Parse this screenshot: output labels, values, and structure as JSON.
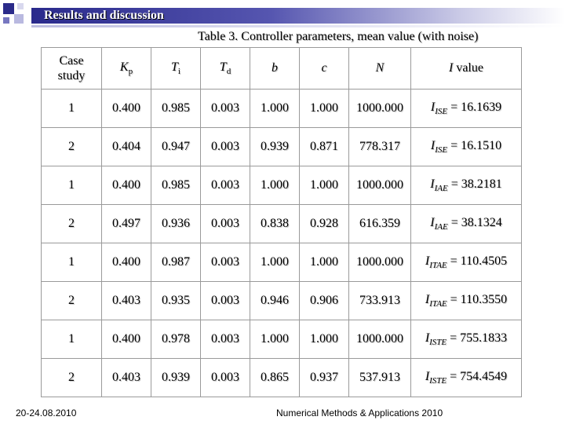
{
  "slide": {
    "title": "Results and discussion",
    "table_caption": "Table 3. Controller parameters, mean value (with noise)"
  },
  "table": {
    "headers": {
      "case_line1": "Case",
      "case_line2": "study",
      "kp_main": "K",
      "kp_sub": "p",
      "ti_main": "T",
      "ti_sub": "i",
      "td_main": "T",
      "td_sub": "d",
      "b": "b",
      "c": "c",
      "n": "N",
      "i_italic": "I",
      "i_rest": " value"
    },
    "rows": [
      {
        "case": "1",
        "kp": "0.400",
        "ti": "0.985",
        "td": "0.003",
        "b": "1.000",
        "c": "1.000",
        "n": "1000.000",
        "i_main": "I",
        "i_sub": "ISE",
        "i_val": " = 16.1639"
      },
      {
        "case": "2",
        "kp": "0.404",
        "ti": "0.947",
        "td": "0.003",
        "b": "0.939",
        "c": "0.871",
        "n": "778.317",
        "i_main": "I",
        "i_sub": "ISE",
        "i_val": " = 16.1510"
      },
      {
        "case": "1",
        "kp": "0.400",
        "ti": "0.985",
        "td": "0.003",
        "b": "1.000",
        "c": "1.000",
        "n": "1000.000",
        "i_main": "I",
        "i_sub": "IAE",
        "i_val": " = 38.2181"
      },
      {
        "case": "2",
        "kp": "0.497",
        "ti": "0.936",
        "td": "0.003",
        "b": "0.838",
        "c": "0.928",
        "n": "616.359",
        "i_main": "I",
        "i_sub": "IAE",
        "i_val": " = 38.1324"
      },
      {
        "case": "1",
        "kp": "0.400",
        "ti": "0.987",
        "td": "0.003",
        "b": "1.000",
        "c": "1.000",
        "n": "1000.000",
        "i_main": "I",
        "i_sub": "ITAE",
        "i_val": " = 110.4505"
      },
      {
        "case": "2",
        "kp": "0.403",
        "ti": "0.935",
        "td": "0.003",
        "b": "0.946",
        "c": "0.906",
        "n": "733.913",
        "i_main": "I",
        "i_sub": "ITAE",
        "i_val": " = 110.3550"
      },
      {
        "case": "1",
        "kp": "0.400",
        "ti": "0.978",
        "td": "0.003",
        "b": "1.000",
        "c": "1.000",
        "n": "1000.000",
        "i_main": "I",
        "i_sub": "ISTE",
        "i_val": " = 755.1833"
      },
      {
        "case": "2",
        "kp": "0.403",
        "ti": "0.939",
        "td": "0.003",
        "b": "0.865",
        "c": "0.937",
        "n": "537.913",
        "i_main": "I",
        "i_sub": "ISTE",
        "i_val": " = 754.4549"
      }
    ]
  },
  "footer": {
    "date": "20-24.08.2010",
    "conference": "Numerical Methods & Applications 2010"
  },
  "colors": {
    "title_bar": "#2a2a8c",
    "accent_light": "#b9b9e0"
  }
}
